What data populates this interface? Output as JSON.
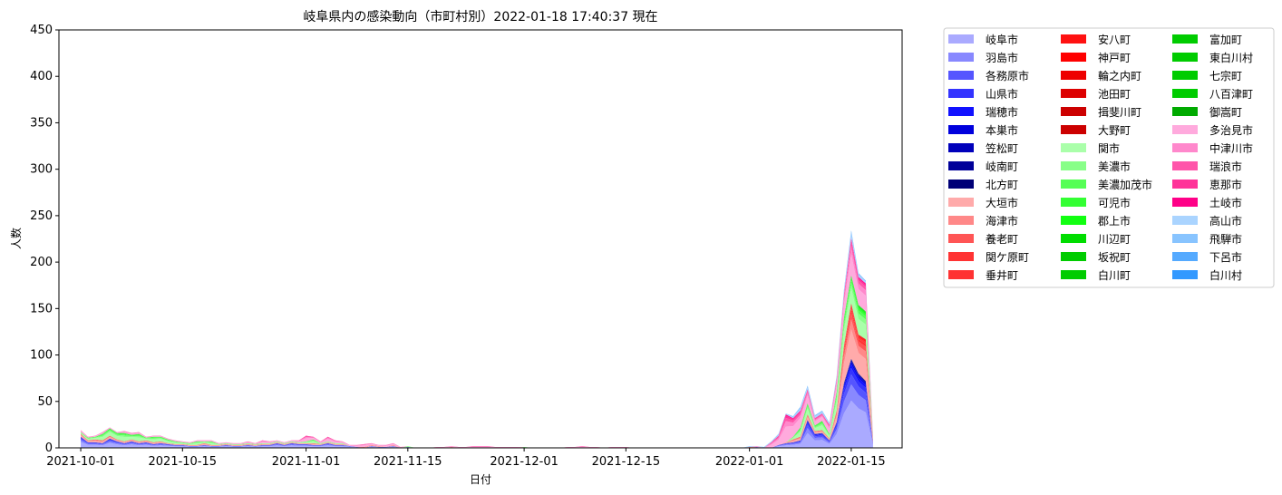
{
  "chart_data": {
    "type": "area",
    "stacked": true,
    "title": "岐阜県内の感染動向（市町村別）2022-01-18 17:40:37 現在",
    "xlabel": "日付",
    "ylabel": "人数",
    "xlim": [
      "2021-09-28",
      "2022-01-22"
    ],
    "ylim": [
      0,
      450
    ],
    "yticks": [
      0,
      50,
      100,
      150,
      200,
      250,
      300,
      350,
      400,
      450
    ],
    "xticks": [
      "2021-10-01",
      "2021-10-15",
      "2021-11-01",
      "2021-11-15",
      "2021-12-01",
      "2021-12-15",
      "2022-01-01",
      "2022-01-15"
    ],
    "legend_position": "outside-right",
    "dates": [
      "2021-10-01",
      "2021-10-02",
      "2021-10-03",
      "2021-10-04",
      "2021-10-05",
      "2021-10-06",
      "2021-10-07",
      "2021-10-08",
      "2021-10-09",
      "2021-10-10",
      "2021-10-11",
      "2021-10-12",
      "2021-10-13",
      "2021-10-14",
      "2021-10-15",
      "2021-10-16",
      "2021-10-17",
      "2021-10-18",
      "2021-10-19",
      "2021-10-20",
      "2021-10-21",
      "2021-10-22",
      "2021-10-23",
      "2021-10-24",
      "2021-10-25",
      "2021-10-26",
      "2021-10-27",
      "2021-10-28",
      "2021-10-29",
      "2021-10-30",
      "2021-10-31",
      "2021-11-01",
      "2021-11-02",
      "2021-11-03",
      "2021-11-04",
      "2021-11-05",
      "2021-11-06",
      "2021-11-07",
      "2021-11-08",
      "2021-11-09",
      "2021-11-10",
      "2021-11-11",
      "2021-11-12",
      "2021-11-13",
      "2021-11-14",
      "2021-11-15",
      "2021-11-16",
      "2021-11-17",
      "2021-11-18",
      "2021-11-19",
      "2021-11-20",
      "2021-11-21",
      "2021-11-22",
      "2021-11-23",
      "2021-11-24",
      "2021-11-25",
      "2021-11-26",
      "2021-11-27",
      "2021-11-28",
      "2021-11-29",
      "2021-11-30",
      "2021-12-01",
      "2021-12-02",
      "2021-12-03",
      "2021-12-04",
      "2021-12-05",
      "2021-12-06",
      "2021-12-07",
      "2021-12-08",
      "2021-12-09",
      "2021-12-10",
      "2021-12-11",
      "2021-12-12",
      "2021-12-13",
      "2021-12-14",
      "2021-12-15",
      "2021-12-16",
      "2021-12-17",
      "2021-12-18",
      "2021-12-19",
      "2021-12-20",
      "2021-12-21",
      "2021-12-22",
      "2021-12-23",
      "2021-12-24",
      "2021-12-25",
      "2021-12-26",
      "2021-12-27",
      "2021-12-28",
      "2021-12-29",
      "2021-12-30",
      "2021-12-31",
      "2022-01-01",
      "2022-01-02",
      "2022-01-03",
      "2022-01-04",
      "2022-01-05",
      "2022-01-06",
      "2022-01-07",
      "2022-01-08",
      "2022-01-09",
      "2022-01-10",
      "2022-01-11",
      "2022-01-12",
      "2022-01-13",
      "2022-01-14",
      "2022-01-15",
      "2022-01-16",
      "2022-01-17",
      "2022-01-18"
    ],
    "series": [
      {
        "name": "岐阜市",
        "color": "#aaaaff"
      },
      {
        "name": "羽島市",
        "color": "#8888ff"
      },
      {
        "name": "各務原市",
        "color": "#5555ff"
      },
      {
        "name": "山県市",
        "color": "#3333ff"
      },
      {
        "name": "瑞穂市",
        "color": "#1111ff"
      },
      {
        "name": "本巣市",
        "color": "#0000dd"
      },
      {
        "name": "笠松町",
        "color": "#0000bb"
      },
      {
        "name": "岐南町",
        "color": "#000099"
      },
      {
        "name": "北方町",
        "color": "#000077"
      },
      {
        "name": "大垣市",
        "color": "#ffaaaa"
      },
      {
        "name": "海津市",
        "color": "#ff8888"
      },
      {
        "name": "養老町",
        "color": "#ff5555"
      },
      {
        "name": "関ケ原町",
        "color": "#ff3333"
      },
      {
        "name": "垂井町",
        "color": "#ff3333"
      },
      {
        "name": "安八町",
        "color": "#ff1111"
      },
      {
        "name": "神戸町",
        "color": "#ff0000"
      },
      {
        "name": "輪之内町",
        "color": "#ee0000"
      },
      {
        "name": "池田町",
        "color": "#dd0000"
      },
      {
        "name": "揖斐川町",
        "color": "#cc0000"
      },
      {
        "name": "大野町",
        "color": "#cc0000"
      },
      {
        "name": "関市",
        "color": "#aaffaa"
      },
      {
        "name": "美濃市",
        "color": "#88ff88"
      },
      {
        "name": "美濃加茂市",
        "color": "#55ff55"
      },
      {
        "name": "可児市",
        "color": "#33ff33"
      },
      {
        "name": "郡上市",
        "color": "#11ff11"
      },
      {
        "name": "川辺町",
        "color": "#00dd00"
      },
      {
        "name": "坂祝町",
        "color": "#00cc00"
      },
      {
        "name": "白川町",
        "color": "#00cc00"
      },
      {
        "name": "富加町",
        "color": "#00cc00"
      },
      {
        "name": "東白川村",
        "color": "#00cc00"
      },
      {
        "name": "七宗町",
        "color": "#00cc00"
      },
      {
        "name": "八百津町",
        "color": "#00cc00"
      },
      {
        "name": "御嵩町",
        "color": "#00aa00"
      },
      {
        "name": "多治見市",
        "color": "#ffaadd"
      },
      {
        "name": "中津川市",
        "color": "#ff88cc"
      },
      {
        "name": "瑞浪市",
        "color": "#ff55aa"
      },
      {
        "name": "恵那市",
        "color": "#ff3399"
      },
      {
        "name": "土岐市",
        "color": "#ff0088"
      },
      {
        "name": "高山市",
        "color": "#aad4ff"
      },
      {
        "name": "飛騨市",
        "color": "#88c4ff"
      },
      {
        "name": "下呂市",
        "color": "#55aaff"
      },
      {
        "name": "白川村",
        "color": "#3399ff"
      }
    ],
    "region_values": {
      "gifu_area": [
        12,
        6,
        6,
        5,
        10,
        7,
        5,
        7,
        5,
        6,
        4,
        5,
        4,
        3,
        3,
        2,
        2,
        3,
        2,
        2,
        3,
        2,
        2,
        3,
        2,
        3,
        3,
        5,
        3,
        5,
        4,
        4,
        3,
        3,
        5,
        3,
        3,
        2,
        1,
        0,
        2,
        1,
        1,
        2,
        0,
        1,
        0,
        0,
        0,
        0,
        0,
        0,
        0,
        0,
        0,
        0,
        0,
        0,
        0,
        0,
        0,
        0,
        0,
        0,
        0,
        0,
        0,
        0,
        0,
        0,
        0,
        0,
        0,
        0,
        0,
        0,
        0,
        0,
        0,
        0,
        0,
        0,
        0,
        0,
        0,
        0,
        0,
        0,
        0,
        0,
        0,
        0,
        0,
        1,
        0,
        0,
        3,
        5,
        6,
        8,
        30,
        15,
        16,
        8,
        28,
        70,
        96,
        80,
        72,
        5
      ],
      "seino_area": [
        3,
        2,
        3,
        3,
        3,
        2,
        2,
        2,
        2,
        2,
        2,
        2,
        1,
        1,
        1,
        1,
        1,
        2,
        1,
        1,
        1,
        1,
        1,
        1,
        1,
        1,
        1,
        1,
        1,
        1,
        1,
        1,
        2,
        1,
        1,
        1,
        1,
        0,
        0,
        1,
        1,
        1,
        0,
        1,
        0,
        0,
        0,
        0,
        0,
        0,
        0,
        1,
        0,
        0,
        0,
        0,
        0,
        0,
        0,
        0,
        0,
        0,
        0,
        0,
        0,
        0,
        0,
        0,
        0,
        0,
        0,
        0,
        0,
        0,
        0,
        0,
        0,
        0,
        0,
        0,
        0,
        0,
        0,
        0,
        0,
        0,
        0,
        0,
        0,
        0,
        0,
        0,
        1,
        0,
        0,
        0,
        0,
        1,
        3,
        4,
        6,
        3,
        3,
        2,
        12,
        40,
        60,
        42,
        45,
        3
      ],
      "chuno_area": [
        2,
        3,
        3,
        7,
        8,
        7,
        9,
        5,
        8,
        3,
        6,
        5,
        4,
        3,
        2,
        2,
        4,
        2,
        4,
        1,
        1,
        1,
        1,
        1,
        1,
        1,
        1,
        1,
        1,
        1,
        1,
        2,
        4,
        1,
        1,
        1,
        1,
        0,
        0,
        0,
        0,
        0,
        0,
        0,
        0,
        1,
        0,
        0,
        0,
        0,
        0,
        0,
        0,
        0,
        0,
        0,
        0,
        0,
        0,
        0,
        0,
        1,
        0,
        0,
        0,
        0,
        0,
        0,
        0,
        0,
        0,
        0,
        0,
        0,
        0,
        0,
        0,
        0,
        0,
        0,
        0,
        0,
        0,
        0,
        0,
        0,
        0,
        0,
        0,
        0,
        0,
        0,
        0,
        0,
        0,
        0,
        0,
        0,
        3,
        10,
        12,
        6,
        10,
        5,
        20,
        30,
        30,
        32,
        30,
        1
      ],
      "tono_area": [
        2,
        1,
        1,
        2,
        1,
        1,
        2,
        2,
        2,
        1,
        1,
        1,
        1,
        1,
        1,
        1,
        1,
        1,
        1,
        1,
        1,
        1,
        1,
        2,
        1,
        3,
        2,
        1,
        1,
        1,
        2,
        6,
        3,
        2,
        5,
        3,
        2,
        1,
        2,
        3,
        2,
        1,
        2,
        2,
        1,
        0,
        0,
        0,
        0,
        1,
        1,
        1,
        1,
        1,
        2,
        2,
        2,
        1,
        1,
        1,
        1,
        0,
        0,
        0,
        0,
        0,
        0,
        1,
        1,
        2,
        1,
        1,
        0,
        1,
        1,
        1,
        0,
        0,
        0,
        0,
        0,
        0,
        0,
        0,
        0,
        0,
        0,
        0,
        0,
        0,
        0,
        0,
        0,
        1,
        0,
        6,
        10,
        30,
        20,
        18,
        15,
        8,
        8,
        10,
        15,
        25,
        40,
        30,
        30,
        3
      ],
      "hida_area": [
        0,
        0,
        0,
        0,
        0,
        0,
        0,
        0,
        0,
        0,
        0,
        0,
        0,
        0,
        0,
        0,
        0,
        0,
        0,
        0,
        0,
        0,
        0,
        0,
        0,
        0,
        0,
        0,
        0,
        0,
        0,
        0,
        0,
        0,
        0,
        0,
        0,
        0,
        0,
        0,
        0,
        0,
        0,
        0,
        0,
        0,
        0,
        0,
        0,
        0,
        0,
        0,
        0,
        0,
        0,
        0,
        0,
        0,
        0,
        0,
        0,
        0,
        0,
        0,
        0,
        0,
        0,
        0,
        0,
        0,
        0,
        0,
        0,
        0,
        0,
        0,
        0,
        0,
        0,
        0,
        0,
        0,
        0,
        0,
        0,
        0,
        0,
        0,
        0,
        0,
        0,
        0,
        1,
        0,
        1,
        1,
        2,
        1,
        2,
        4,
        4,
        3,
        3,
        2,
        3,
        5,
        8,
        4,
        3,
        1
      ]
    }
  }
}
